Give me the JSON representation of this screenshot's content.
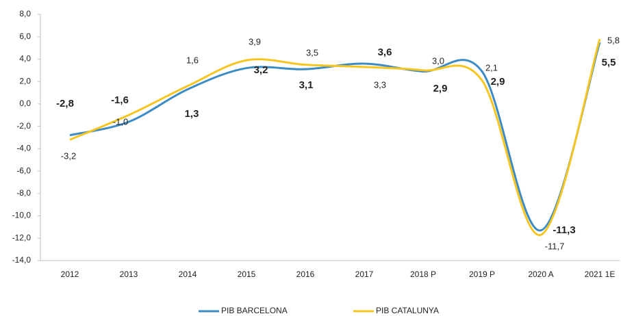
{
  "chart_data": {
    "type": "line",
    "categories": [
      "2012",
      "2013",
      "2014",
      "2015",
      "2016",
      "2017",
      "2018 P",
      "2019 P",
      "2020 A",
      "2021 1E"
    ],
    "series": [
      {
        "name": "PIB BARCELONA",
        "color": "#3d8bc4",
        "values": [
          -2.8,
          -1.6,
          1.3,
          3.2,
          3.1,
          3.6,
          2.9,
          2.9,
          -11.3,
          5.5
        ],
        "value_labels": [
          "-2,8",
          "-1,6",
          "1,3",
          "3,2",
          "3,1",
          "3,6",
          "2,9",
          "2,9",
          "-11,3",
          "5,5"
        ]
      },
      {
        "name": "PIB CATALUNYA",
        "color": "#f7c520",
        "values": [
          -3.2,
          -1.0,
          1.6,
          3.9,
          3.5,
          3.3,
          3.0,
          2.1,
          -11.7,
          5.8
        ],
        "value_labels": [
          "-3,2",
          "-1,0",
          "1,6",
          "3,9",
          "3,5",
          "3,3",
          "3,0",
          "2,1",
          "-11,7",
          "5,8"
        ]
      }
    ],
    "ylim": [
      -14,
      8
    ],
    "yticks": [
      {
        "value": -14,
        "label": "-14,0"
      },
      {
        "value": -12,
        "label": "-12,0"
      },
      {
        "value": -10,
        "label": "-10,0"
      },
      {
        "value": -8,
        "label": "-8,0"
      },
      {
        "value": -6,
        "label": "-6,0"
      },
      {
        "value": -4,
        "label": "-4,0"
      },
      {
        "value": -2,
        "label": "-2,0"
      },
      {
        "value": 0,
        "label": "0,0"
      },
      {
        "value": 2,
        "label": "2,0"
      },
      {
        "value": 4,
        "label": "4,0"
      },
      {
        "value": 6,
        "label": "6,0"
      },
      {
        "value": 8,
        "label": "8,0"
      }
    ],
    "grid": false,
    "legend": "bottom"
  }
}
